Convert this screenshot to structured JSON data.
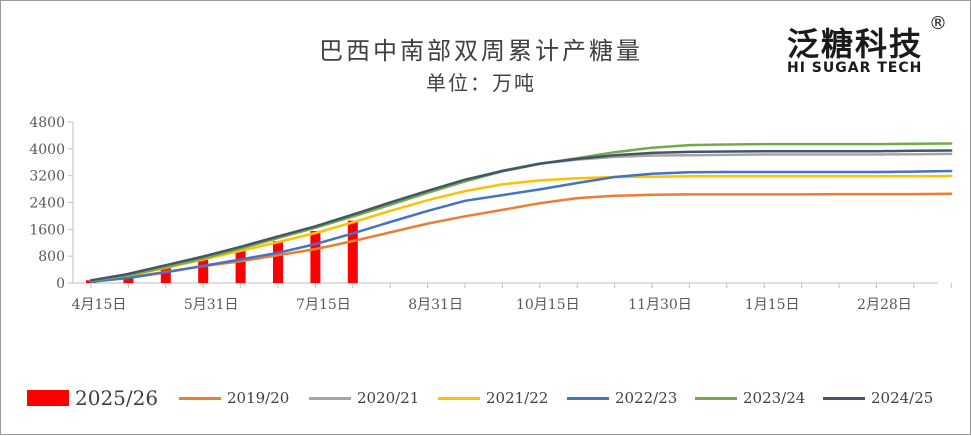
{
  "header": {
    "title": "巴西中南部双周累计产糖量",
    "subtitle": "单位：万吨"
  },
  "logo": {
    "name_cn": "泛糖科技",
    "name_en": "HI SUGAR TECH",
    "registered_mark": "®"
  },
  "chart_data": {
    "type": "bar+line",
    "title": "巴西中南部双周累计产糖量",
    "unit": "单位：万吨",
    "ylim": [
      0,
      4800
    ],
    "yticks": [
      0,
      800,
      1600,
      2400,
      3200,
      4000,
      4800
    ],
    "yticks_labels": [
      "0",
      "800",
      "1600",
      "2400",
      "3200",
      "4000",
      "4800"
    ],
    "grid": false,
    "legend_position": "bottom",
    "period_count": 24,
    "xtick_labels": [
      {
        "index": 0,
        "label": "4月15日"
      },
      {
        "index": 3,
        "label": "5月31日"
      },
      {
        "index": 6,
        "label": "7月15日"
      },
      {
        "index": 9,
        "label": "8月31日"
      },
      {
        "index": 12,
        "label": "10月15日"
      },
      {
        "index": 15,
        "label": "11月30日"
      },
      {
        "index": 18,
        "label": "1月15日"
      },
      {
        "index": 21,
        "label": "2月28日"
      }
    ],
    "bar_series": {
      "name": "2025/26",
      "color": "#ff0000",
      "values": [
        80,
        200,
        450,
        700,
        950,
        1250,
        1550,
        1860
      ]
    },
    "line_series": [
      {
        "name": "2019/20",
        "color": "#ed7d31",
        "values": [
          50,
          170,
          330,
          500,
          650,
          830,
          1010,
          1250,
          1510,
          1770,
          1990,
          2180,
          2380,
          2530,
          2600,
          2630,
          2640,
          2640,
          2640,
          2640,
          2650,
          2650,
          2650,
          2660
        ]
      },
      {
        "name": "2020/21",
        "color": "#a5a5a5",
        "values": [
          70,
          260,
          500,
          760,
          1050,
          1350,
          1650,
          2000,
          2350,
          2720,
          3060,
          3350,
          3560,
          3680,
          3760,
          3800,
          3810,
          3820,
          3830,
          3830,
          3830,
          3830,
          3840,
          3850
        ]
      },
      {
        "name": "2021/22",
        "color": "#ffc000",
        "values": [
          60,
          220,
          450,
          700,
          960,
          1220,
          1490,
          1810,
          2150,
          2470,
          2740,
          2940,
          3060,
          3120,
          3160,
          3170,
          3180,
          3180,
          3180,
          3180,
          3180,
          3180,
          3180,
          3190
        ]
      },
      {
        "name": "2022/23",
        "color": "#4472c4",
        "values": [
          40,
          150,
          320,
          510,
          700,
          900,
          1160,
          1480,
          1820,
          2150,
          2450,
          2620,
          2790,
          2980,
          3160,
          3260,
          3300,
          3310,
          3310,
          3310,
          3310,
          3310,
          3320,
          3340
        ]
      },
      {
        "name": "2023/24",
        "color": "#70ad47",
        "values": [
          60,
          230,
          470,
          730,
          1030,
          1340,
          1650,
          1980,
          2330,
          2690,
          3030,
          3330,
          3550,
          3720,
          3900,
          4030,
          4110,
          4130,
          4140,
          4140,
          4140,
          4140,
          4150,
          4160
        ]
      },
      {
        "name": "2024/25",
        "color": "#44546a",
        "values": [
          80,
          270,
          530,
          790,
          1080,
          1390,
          1690,
          2040,
          2400,
          2750,
          3080,
          3340,
          3560,
          3700,
          3810,
          3880,
          3910,
          3920,
          3930,
          3930,
          3930,
          3930,
          3940,
          3950
        ]
      }
    ]
  }
}
